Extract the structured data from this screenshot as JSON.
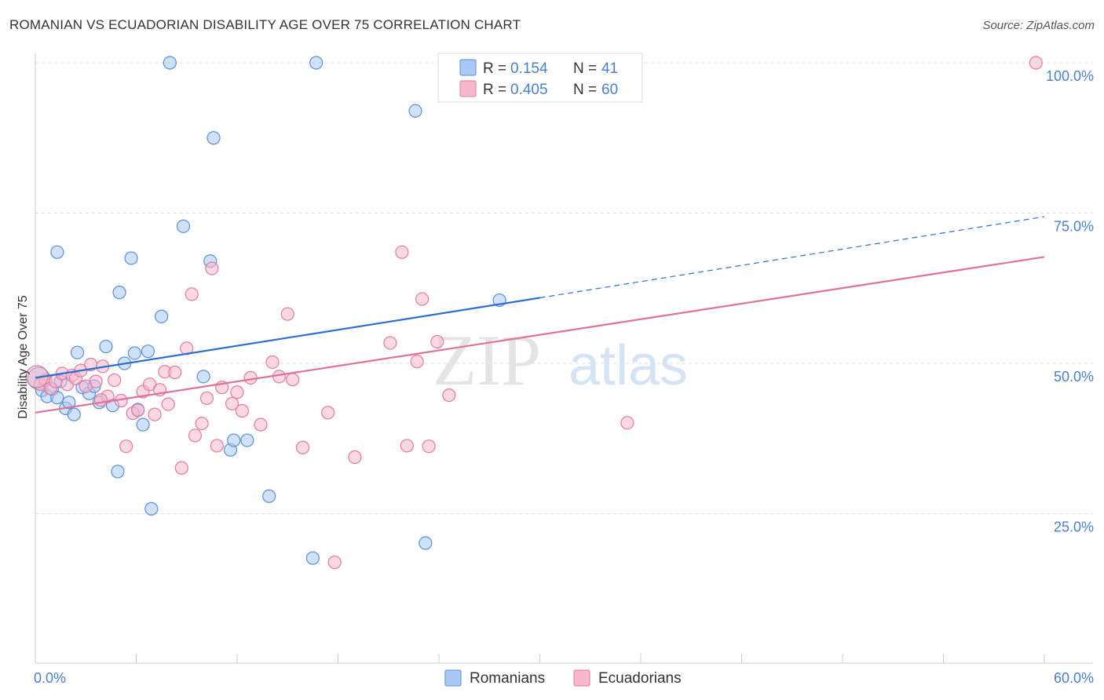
{
  "title": "ROMANIAN VS ECUADORIAN DISABILITY AGE OVER 75 CORRELATION CHART",
  "source": "Source: ZipAtlas.com",
  "watermark": {
    "zip": "ZIP",
    "atlas": "atlas"
  },
  "legend_top": [
    {
      "r_label": "R =",
      "r_value": "0.154",
      "n_label": "N =",
      "n_value": "41",
      "color": "#a9c8f5",
      "stroke": "#5b8fd6"
    },
    {
      "r_label": "R =",
      "r_value": "0.405",
      "n_label": "N =",
      "n_value": "60",
      "color": "#f7b8cc",
      "stroke": "#e17aa0"
    }
  ],
  "legend_bottom": [
    {
      "label": "Romanians",
      "color": "#a9c8f5",
      "stroke": "#5b8fd6"
    },
    {
      "label": "Ecuadorians",
      "color": "#f7b8cc",
      "stroke": "#e17aa0"
    }
  ],
  "colors": {
    "blue_line": "#2a6fd0",
    "pink_line": "#e0729a",
    "tick_label": "#4a7fcf",
    "grid": "#dddddd"
  },
  "chart_data": {
    "type": "scatter",
    "title": "ROMANIAN VS ECUADORIAN DISABILITY AGE OVER 75 CORRELATION CHART",
    "ylabel": "Disability Age Over 75",
    "xlabel": "",
    "xlim": [
      0,
      60
    ],
    "ylim": [
      0,
      105
    ],
    "x_tick_labels": [
      {
        "value": 0,
        "label": "0.0%"
      },
      {
        "value": 60,
        "label": "60.0%"
      }
    ],
    "y_tick_labels": [
      {
        "value": 25,
        "label": "25.0%"
      },
      {
        "value": 50,
        "label": "50.0%"
      },
      {
        "value": 75,
        "label": "75.0%"
      },
      {
        "value": 100,
        "label": "100.0%"
      }
    ],
    "grid": true,
    "legend_position": "top-center",
    "series": [
      {
        "name": "Romanians",
        "color": "#a9c8f5",
        "points": [
          [
            0.2,
            47.5
          ],
          [
            0.4,
            45.5
          ],
          [
            0.7,
            44.5
          ],
          [
            1.0,
            45.7
          ],
          [
            1.3,
            44.3
          ],
          [
            1.5,
            47.0
          ],
          [
            1.8,
            42.5
          ],
          [
            2.0,
            43.5
          ],
          [
            2.3,
            41.5
          ],
          [
            2.5,
            51.8
          ],
          [
            2.8,
            46.0
          ],
          [
            3.2,
            45.0
          ],
          [
            3.5,
            46.2
          ],
          [
            3.8,
            43.5
          ],
          [
            4.2,
            52.8
          ],
          [
            4.6,
            43.0
          ],
          [
            4.9,
            32.0
          ],
          [
            5.0,
            61.8
          ],
          [
            5.3,
            50.0
          ],
          [
            5.7,
            67.5
          ],
          [
            5.9,
            51.7
          ],
          [
            6.1,
            42.3
          ],
          [
            6.4,
            39.8
          ],
          [
            6.7,
            52.0
          ],
          [
            6.9,
            25.8
          ],
          [
            7.5,
            57.8
          ],
          [
            8.0,
            100.0
          ],
          [
            8.8,
            72.8
          ],
          [
            10.0,
            47.8
          ],
          [
            10.4,
            67.0
          ],
          [
            10.6,
            87.5
          ],
          [
            11.6,
            35.6
          ],
          [
            11.8,
            37.2
          ],
          [
            12.6,
            37.2
          ],
          [
            13.9,
            27.9
          ],
          [
            16.5,
            17.6
          ],
          [
            16.7,
            100.0
          ],
          [
            22.6,
            92.0
          ],
          [
            23.2,
            20.1
          ],
          [
            1.3,
            68.5
          ],
          [
            27.6,
            60.5
          ]
        ]
      },
      {
        "name": "Ecuadorians",
        "color": "#f7b8cc",
        "points": [
          [
            0.3,
            46.5
          ],
          [
            0.6,
            47.2
          ],
          [
            0.9,
            45.8
          ],
          [
            1.2,
            47.0
          ],
          [
            1.6,
            48.3
          ],
          [
            1.9,
            46.5
          ],
          [
            2.2,
            48.0
          ],
          [
            2.4,
            47.5
          ],
          [
            2.7,
            48.8
          ],
          [
            3.0,
            46.2
          ],
          [
            3.3,
            49.8
          ],
          [
            3.6,
            47.0
          ],
          [
            4.0,
            49.5
          ],
          [
            4.3,
            44.5
          ],
          [
            4.7,
            47.2
          ],
          [
            5.1,
            43.8
          ],
          [
            5.4,
            36.2
          ],
          [
            5.8,
            41.7
          ],
          [
            6.1,
            42.2
          ],
          [
            6.4,
            45.3
          ],
          [
            6.8,
            46.5
          ],
          [
            7.1,
            41.5
          ],
          [
            7.4,
            45.6
          ],
          [
            7.7,
            48.6
          ],
          [
            7.9,
            43.2
          ],
          [
            8.3,
            48.5
          ],
          [
            8.7,
            32.6
          ],
          [
            9.0,
            52.5
          ],
          [
            9.3,
            61.5
          ],
          [
            9.5,
            38.0
          ],
          [
            9.9,
            40.0
          ],
          [
            10.2,
            44.2
          ],
          [
            10.5,
            65.8
          ],
          [
            10.8,
            36.3
          ],
          [
            11.1,
            46.0
          ],
          [
            11.7,
            43.3
          ],
          [
            12.0,
            45.2
          ],
          [
            12.3,
            42.1
          ],
          [
            12.8,
            47.6
          ],
          [
            13.4,
            39.8
          ],
          [
            14.1,
            50.2
          ],
          [
            14.5,
            47.8
          ],
          [
            15.0,
            58.2
          ],
          [
            15.3,
            47.3
          ],
          [
            15.9,
            36.0
          ],
          [
            17.4,
            41.8
          ],
          [
            17.8,
            16.9
          ],
          [
            19.0,
            34.4
          ],
          [
            21.1,
            53.4
          ],
          [
            21.8,
            68.5
          ],
          [
            22.1,
            36.3
          ],
          [
            23.0,
            60.7
          ],
          [
            23.4,
            36.2
          ],
          [
            23.9,
            53.6
          ],
          [
            24.6,
            44.7
          ],
          [
            22.7,
            50.3
          ],
          [
            35.2,
            40.1
          ],
          [
            59.5,
            100.0
          ],
          [
            0.1,
            47.8
          ],
          [
            3.9,
            43.9
          ]
        ]
      }
    ],
    "trendlines": [
      {
        "series": "Romanians",
        "x0": 0,
        "y0": 47.6,
        "x1": 30,
        "y1": 60.9,
        "dashed_until_x": 60,
        "dashed_y": 74.4
      },
      {
        "series": "Ecuadorians",
        "x0": 0,
        "y0": 41.8,
        "x1": 60,
        "y1": 67.7
      }
    ]
  }
}
